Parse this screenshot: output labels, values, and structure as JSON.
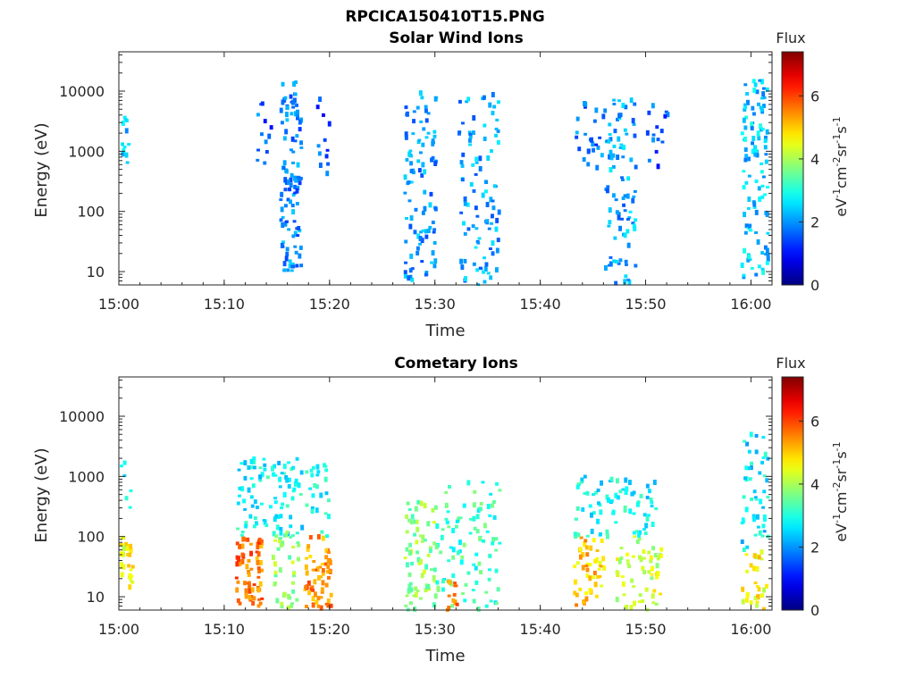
{
  "figure": {
    "title": "RPCICA150410T15.PNG"
  },
  "chart_data": [
    {
      "type": "heatmap",
      "title": "Solar Wind Ions",
      "xlabel": "Time",
      "ylabel": "Energy (eV)",
      "x_ticks": [
        "15:00",
        "15:10",
        "15:20",
        "15:30",
        "15:40",
        "15:50",
        "16:00"
      ],
      "xlim_minutes": [
        0,
        62
      ],
      "y_scale": "log",
      "y_ticks": [
        "10",
        "100",
        "1000",
        "10000"
      ],
      "ylim": [
        6,
        45000
      ],
      "colorbar": {
        "label_top": "Flux",
        "unit_label": "eV-1cm-2sr-1s-1",
        "range": [
          0,
          7.4
        ],
        "ticks": [
          "0",
          "2",
          "4",
          "6"
        ],
        "colormap": "jet"
      },
      "clusters": [
        {
          "t_min": 0.1,
          "t_max": 0.8,
          "e_min": 400,
          "e_max": 5000,
          "level": 2.3,
          "count": 12
        },
        {
          "t_min": 12.5,
          "t_max": 14.5,
          "e_min": 500,
          "e_max": 7000,
          "level": 1.6,
          "count": 12
        },
        {
          "t_min": 15.2,
          "t_max": 17.2,
          "e_min": 10,
          "e_max": 15000,
          "level": 1.9,
          "count": 110
        },
        {
          "t_min": 18.5,
          "t_max": 20.0,
          "e_min": 400,
          "e_max": 10000,
          "level": 1.5,
          "count": 12
        },
        {
          "t_min": 27.0,
          "t_max": 30.0,
          "e_min": 6,
          "e_max": 10000,
          "level": 2.0,
          "count": 100
        },
        {
          "t_min": 32.0,
          "t_max": 36.0,
          "e_min": 6,
          "e_max": 10000,
          "level": 2.1,
          "count": 100
        },
        {
          "t_min": 43.0,
          "t_max": 46.0,
          "e_min": 500,
          "e_max": 8000,
          "level": 1.7,
          "count": 25
        },
        {
          "t_min": 46.0,
          "t_max": 49.0,
          "e_min": 6,
          "e_max": 9000,
          "level": 2.1,
          "count": 90
        },
        {
          "t_min": 50.0,
          "t_max": 52.0,
          "e_min": 500,
          "e_max": 8000,
          "level": 1.6,
          "count": 15
        },
        {
          "t_min": 59.0,
          "t_max": 61.5,
          "e_min": 8,
          "e_max": 15000,
          "level": 2.4,
          "count": 110
        }
      ]
    },
    {
      "type": "heatmap",
      "title": "Cometary Ions",
      "xlabel": "Time",
      "ylabel": "Energy (eV)",
      "x_ticks": [
        "15:00",
        "15:10",
        "15:20",
        "15:30",
        "15:40",
        "15:50",
        "16:00"
      ],
      "xlim_minutes": [
        0,
        62
      ],
      "y_scale": "log",
      "y_ticks": [
        "10",
        "100",
        "1000",
        "10000"
      ],
      "ylim": [
        6,
        45000
      ],
      "colorbar": {
        "label_top": "Flux",
        "unit_label": "eV-1cm-2sr-1s-1",
        "range": [
          0,
          7.4
        ],
        "ticks": [
          "0",
          "2",
          "4",
          "6"
        ],
        "colormap": "jet"
      },
      "clusters": [
        {
          "t_min": 0.0,
          "t_max": 1.2,
          "e_min": 10,
          "e_max": 100,
          "level": 4.5,
          "count": 30
        },
        {
          "t_min": 0.0,
          "t_max": 1.0,
          "e_min": 200,
          "e_max": 3000,
          "level": 2.5,
          "count": 6
        },
        {
          "t_min": 11.0,
          "t_max": 13.5,
          "e_min": 6,
          "e_max": 100,
          "level": 5.6,
          "count": 70
        },
        {
          "t_min": 11.0,
          "t_max": 20.0,
          "e_min": 100,
          "e_max": 2000,
          "level": 2.8,
          "count": 120
        },
        {
          "t_min": 14.5,
          "t_max": 17.0,
          "e_min": 6,
          "e_max": 120,
          "level": 3.8,
          "count": 40
        },
        {
          "t_min": 17.5,
          "t_max": 20.0,
          "e_min": 6,
          "e_max": 100,
          "level": 5.4,
          "count": 60
        },
        {
          "t_min": 27.0,
          "t_max": 30.0,
          "e_min": 6,
          "e_max": 400,
          "level": 3.8,
          "count": 70
        },
        {
          "t_min": 30.0,
          "t_max": 36.0,
          "e_min": 6,
          "e_max": 800,
          "level": 3.2,
          "count": 100
        },
        {
          "t_min": 31.0,
          "t_max": 32.0,
          "e_min": 6,
          "e_max": 20,
          "level": 5.5,
          "count": 12
        },
        {
          "t_min": 43.0,
          "t_max": 46.0,
          "e_min": 6,
          "e_max": 100,
          "level": 5.0,
          "count": 50
        },
        {
          "t_min": 43.0,
          "t_max": 51.0,
          "e_min": 100,
          "e_max": 1000,
          "level": 2.8,
          "count": 80
        },
        {
          "t_min": 47.0,
          "t_max": 51.5,
          "e_min": 6,
          "e_max": 100,
          "level": 4.3,
          "count": 60
        },
        {
          "t_min": 59.0,
          "t_max": 61.5,
          "e_min": 6,
          "e_max": 60,
          "level": 4.6,
          "count": 30
        },
        {
          "t_min": 59.0,
          "t_max": 61.5,
          "e_min": 60,
          "e_max": 5000,
          "level": 2.6,
          "count": 50
        }
      ]
    }
  ]
}
